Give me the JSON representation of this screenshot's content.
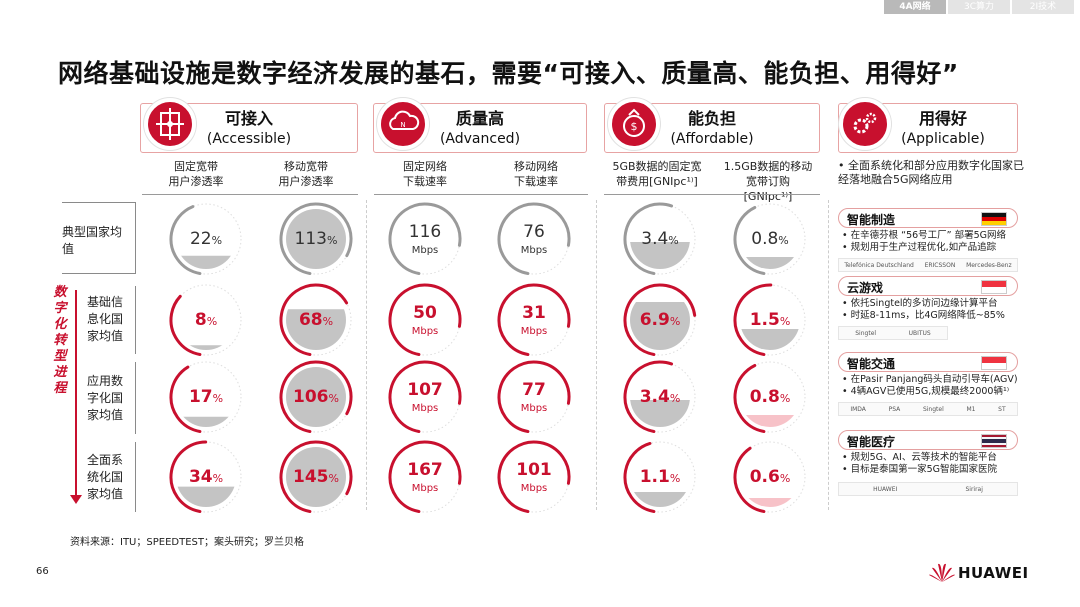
{
  "tabs": [
    "4A网络",
    "3C算力",
    "2I技术"
  ],
  "title": "网络基础设施是数字经济发展的基石，需要“可接入、质量高、能负担、用得好”",
  "categories": [
    {
      "name": "可接入",
      "en": "(Accessible)"
    },
    {
      "name": "质量高",
      "en": "(Advanced)"
    },
    {
      "name": "能负担",
      "en": "(Affordable)"
    },
    {
      "name": "用得好",
      "en": "(Applicable)"
    }
  ],
  "column_headers": [
    "固定宽带\n用户渗透率",
    "移动宽带\n用户渗透率",
    "固定网络\n下载速率",
    "移动网络\n下载速率",
    "5GB数据的固定宽\n带费用[GNIpc¹⁾]",
    "1.5GB数据的移动\n宽带订购\n[GNIpc¹⁾]"
  ],
  "row_labels": [
    "典型国家均\n值",
    "基础信\n息化国\n家均值",
    "应用数\n字化国\n家均值",
    "全面系\n统化国\n家均值"
  ],
  "vertical_label": "数字化转型进程",
  "metrics": {
    "row1": [
      {
        "value": "22",
        "unit": "%",
        "fill": 0.22
      },
      {
        "value": "113",
        "unit": "%",
        "fill": 1.0
      },
      {
        "value": "116",
        "unit": "Mbps",
        "fill": 0.7
      },
      {
        "value": "76",
        "unit": "Mbps",
        "fill": 0.55
      },
      {
        "value": "3.4",
        "unit": "%",
        "fill": 0.45
      },
      {
        "value": "0.8",
        "unit": "%",
        "fill": 0.2
      }
    ],
    "row2": [
      {
        "value": "8",
        "unit": "%",
        "fill": 0.08
      },
      {
        "value": "68",
        "unit": "%",
        "fill": 0.68
      },
      {
        "value": "50",
        "unit": "Mbps",
        "fill": 0.35
      },
      {
        "value": "31",
        "unit": "Mbps",
        "fill": 0.25
      },
      {
        "value": "6.9",
        "unit": "%",
        "fill": 0.8
      },
      {
        "value": "1.5",
        "unit": "%",
        "fill": 0.35
      }
    ],
    "row3": [
      {
        "value": "17",
        "unit": "%",
        "fill": 0.17
      },
      {
        "value": "106",
        "unit": "%",
        "fill": 1.0
      },
      {
        "value": "107",
        "unit": "Mbps",
        "fill": 0.65
      },
      {
        "value": "77",
        "unit": "Mbps",
        "fill": 0.55
      },
      {
        "value": "3.4",
        "unit": "%",
        "fill": 0.45
      },
      {
        "value": "0.8",
        "unit": "%",
        "fill": 0.2
      }
    ],
    "row4": [
      {
        "value": "34",
        "unit": "%",
        "fill": 0.34
      },
      {
        "value": "145",
        "unit": "%",
        "fill": 1.0
      },
      {
        "value": "167",
        "unit": "Mbps",
        "fill": 0.85
      },
      {
        "value": "101",
        "unit": "Mbps",
        "fill": 0.65
      },
      {
        "value": "1.1",
        "unit": "%",
        "fill": 0.25
      },
      {
        "value": "0.6",
        "unit": "%",
        "fill": 0.15
      }
    ]
  },
  "applicable": {
    "intro": "全面系统化和部分应用数字化国家已经落地融合5G网络应用",
    "blocks": [
      {
        "title": "智能制造",
        "bullets": [
          "在辛德芬根 “56号工厂” 部署5G网络",
          "规划用于生产过程优化,如产品追踪"
        ],
        "logos": [
          "Telefónica Deutschland",
          "ERICSSON",
          "Mercedes-Benz"
        ]
      },
      {
        "title": "云游戏",
        "bullets": [
          "依托Singtel的多访问边缘计算平台",
          "时延8-11ms，比4G网络降低~85%"
        ],
        "logos": [
          "Singtel",
          "UBITUS"
        ]
      },
      {
        "title": "智能交通",
        "bullets": [
          "在Pasir Panjang码头自动引导车(AGV)",
          "4辆AGV已使用5G,规模最终2000辆¹⁾"
        ],
        "logos": [
          "IMDA",
          "PSA",
          "Singtel",
          "M1",
          "ST"
        ]
      },
      {
        "title": "智能医疗",
        "bullets": [
          "规划5G、AI、云等技术的智能平台",
          "目标是泰国第一家5G智能国家医院"
        ],
        "logos": [
          "HUAWEI",
          "Siriraj"
        ]
      }
    ]
  },
  "source": "资料来源：ITU；SPEEDTEST；案头研究；罗兰贝格",
  "page_number": "66",
  "brand": "HUAWEI",
  "colors": {
    "accent": "#c8102e",
    "highlight_fill": "#f7c2c8",
    "gray_fill": "#bdbdbd"
  }
}
